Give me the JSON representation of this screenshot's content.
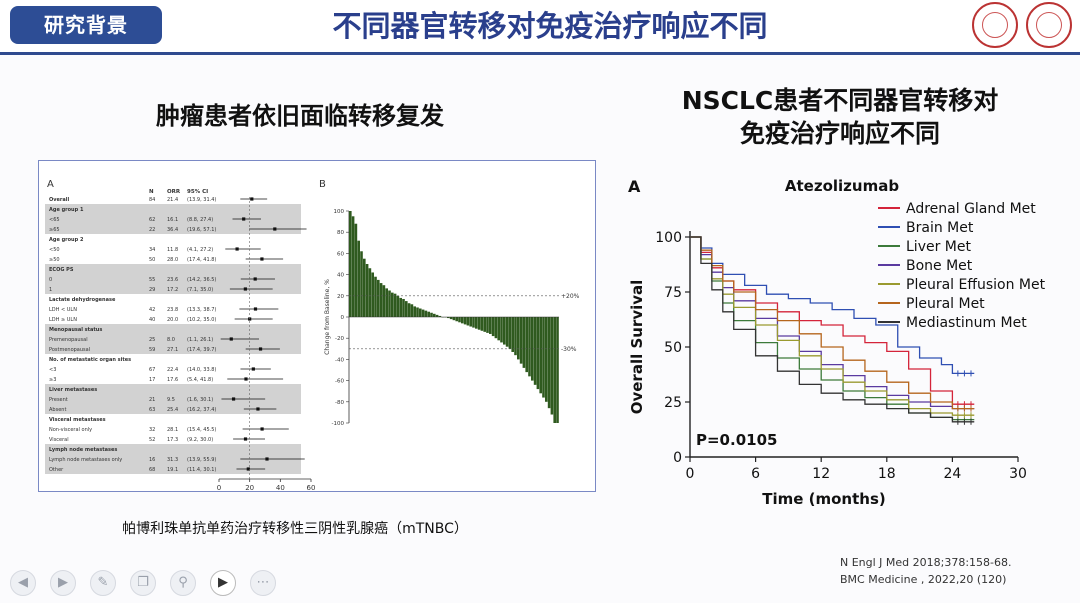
{
  "header": {
    "tab_label": "研究背景",
    "slide_title": "不同器官转移对免疫治疗响应不同"
  },
  "left_panel": {
    "subtitle": "肿瘤患者依旧面临转移复发",
    "caption": "帕博利珠单抗单药治疗转移性三阴性乳腺癌（mTNBC）",
    "forest": {
      "panel_label": "A",
      "col_headers": [
        "N",
        "ORR",
        "95% CI"
      ],
      "rows": [
        {
          "label": "Overall",
          "n": "84",
          "orr": "21.4",
          "ci": "(13.9, 31.4)",
          "shade": false,
          "header": true
        },
        {
          "label": "Age group 1",
          "n": "",
          "orr": "",
          "ci": "",
          "shade": true,
          "header": true
        },
        {
          "label": "<65",
          "n": "62",
          "orr": "16.1",
          "ci": "(8.8, 27.4)",
          "shade": true,
          "header": false
        },
        {
          "label": "≥65",
          "n": "22",
          "orr": "36.4",
          "ci": "(19.6, 57.1)",
          "shade": true,
          "header": false
        },
        {
          "label": "Age group 2",
          "n": "",
          "orr": "",
          "ci": "",
          "shade": false,
          "header": true
        },
        {
          "label": "<50",
          "n": "34",
          "orr": "11.8",
          "ci": "(4.1, 27.2)",
          "shade": false,
          "header": false
        },
        {
          "label": "≥50",
          "n": "50",
          "orr": "28.0",
          "ci": "(17.4, 41.8)",
          "shade": false,
          "header": false
        },
        {
          "label": "ECOG PS",
          "n": "",
          "orr": "",
          "ci": "",
          "shade": true,
          "header": true
        },
        {
          "label": "0",
          "n": "55",
          "orr": "23.6",
          "ci": "(14.2, 36.5)",
          "shade": true,
          "header": false
        },
        {
          "label": "1",
          "n": "29",
          "orr": "17.2",
          "ci": "(7.1, 35.0)",
          "shade": true,
          "header": false
        },
        {
          "label": "Lactate dehydrogenase",
          "n": "",
          "orr": "",
          "ci": "",
          "shade": false,
          "header": true
        },
        {
          "label": "LDH < ULN",
          "n": "42",
          "orr": "23.8",
          "ci": "(13.3, 38.7)",
          "shade": false,
          "header": false
        },
        {
          "label": "LDH ≥ ULN",
          "n": "40",
          "orr": "20.0",
          "ci": "(10.2, 35.0)",
          "shade": false,
          "header": false
        },
        {
          "label": "Menopausal status",
          "n": "",
          "orr": "",
          "ci": "",
          "shade": true,
          "header": true
        },
        {
          "label": "Premenopausal",
          "n": "25",
          "orr": "8.0",
          "ci": "(1.1, 26.1)",
          "shade": true,
          "header": false
        },
        {
          "label": "Postmenopausal",
          "n": "59",
          "orr": "27.1",
          "ci": "(17.4, 39.7)",
          "shade": true,
          "header": false
        },
        {
          "label": "No. of metastatic organ sites",
          "n": "",
          "orr": "",
          "ci": "",
          "shade": false,
          "header": true
        },
        {
          "label": "<3",
          "n": "67",
          "orr": "22.4",
          "ci": "(14.0, 33.8)",
          "shade": false,
          "header": false
        },
        {
          "label": "≥3",
          "n": "17",
          "orr": "17.6",
          "ci": "(5.4, 41.8)",
          "shade": false,
          "header": false
        },
        {
          "label": "Liver metastases",
          "n": "",
          "orr": "",
          "ci": "",
          "shade": true,
          "header": true
        },
        {
          "label": "Present",
          "n": "21",
          "orr": "9.5",
          "ci": "(1.6, 30.1)",
          "shade": true,
          "header": false
        },
        {
          "label": "Absent",
          "n": "63",
          "orr": "25.4",
          "ci": "(16.2, 37.4)",
          "shade": true,
          "header": false
        },
        {
          "label": "Visceral metastases",
          "n": "",
          "orr": "",
          "ci": "",
          "shade": false,
          "header": true
        },
        {
          "label": "Non-visceral only",
          "n": "32",
          "orr": "28.1",
          "ci": "(15.4, 45.5)",
          "shade": false,
          "header": false
        },
        {
          "label": "Visceral",
          "n": "52",
          "orr": "17.3",
          "ci": "(9.2, 30.0)",
          "shade": false,
          "header": false
        },
        {
          "label": "Lymph node metastases",
          "n": "",
          "orr": "",
          "ci": "",
          "shade": true,
          "header": true
        },
        {
          "label": "Lymph node metastases only",
          "n": "16",
          "orr": "31.3",
          "ci": "(13.9, 55.9)",
          "shade": true,
          "header": false
        },
        {
          "label": "Other",
          "n": "68",
          "orr": "19.1",
          "ci": "(11.4, 30.1)",
          "shade": true,
          "header": false
        }
      ],
      "x_ticks": [
        "0",
        "20",
        "40",
        "60"
      ],
      "x_label": "ORR % (95% CI)"
    },
    "waterfall": {
      "panel_label": "B",
      "y_label": "Change from Baseline, %",
      "y_ticks": [
        "100",
        "80",
        "60",
        "40",
        "20",
        "0",
        "-20",
        "-40",
        "-60",
        "-80",
        "-100"
      ],
      "ref_upper": "+20%",
      "ref_lower": "-30%",
      "values": [
        100,
        95,
        88,
        72,
        62,
        55,
        50,
        46,
        42,
        38,
        35,
        32,
        30,
        27,
        25,
        23,
        22,
        20,
        18,
        17,
        15,
        13,
        12,
        10,
        9,
        8,
        7,
        6,
        5,
        4,
        3,
        2,
        1,
        0,
        0,
        -1,
        -2,
        -3,
        -4,
        -5,
        -6,
        -7,
        -8,
        -9,
        -10,
        -11,
        -12,
        -13,
        -14,
        -15,
        -16,
        -18,
        -20,
        -22,
        -24,
        -26,
        -28,
        -30,
        -33,
        -36,
        -40,
        -44,
        -48,
        -52,
        -56,
        -60,
        -64,
        -68,
        -72,
        -76,
        -80,
        -86,
        -92,
        -100,
        -100
      ]
    }
  },
  "right_panel": {
    "subtitle_line1": "NSCLC患者不同器官转移对",
    "subtitle_line2": "免疫治疗响应不同",
    "chart_data": {
      "type": "line",
      "panel_label": "A",
      "title": "Atezolizumab",
      "xlabel": "Time (months)",
      "ylabel": "Overall Survival",
      "xlim": [
        0,
        30
      ],
      "ylim": [
        0,
        100
      ],
      "x_ticks": [
        0,
        6,
        12,
        18,
        24,
        30
      ],
      "y_ticks": [
        0,
        25,
        50,
        75,
        100
      ],
      "annotation": "P=0.0105",
      "legend_position": "top-right",
      "series": [
        {
          "name": "Adrenal Gland Met",
          "color": "#d4243a",
          "x": [
            0,
            1,
            2,
            3,
            4,
            6,
            8,
            10,
            12,
            14,
            16,
            18,
            20,
            22,
            24,
            26
          ],
          "y": [
            100,
            93,
            86,
            80,
            76,
            70,
            66,
            62,
            60,
            55,
            52,
            48,
            40,
            30,
            24,
            24
          ]
        },
        {
          "name": "Brain Met",
          "color": "#2f4fb3",
          "x": [
            0,
            1,
            2,
            3,
            5,
            7,
            9,
            11,
            13,
            15,
            17,
            19,
            21,
            23,
            24,
            26
          ],
          "y": [
            100,
            95,
            88,
            83,
            78,
            74,
            72,
            70,
            67,
            63,
            60,
            50,
            45,
            42,
            38,
            38
          ]
        },
        {
          "name": "Liver Met",
          "color": "#3c7a3a",
          "x": [
            0,
            1,
            2,
            3,
            4,
            6,
            8,
            10,
            12,
            14,
            16,
            18,
            20,
            22,
            24,
            26
          ],
          "y": [
            100,
            90,
            80,
            70,
            62,
            52,
            45,
            40,
            35,
            30,
            27,
            24,
            20,
            18,
            17,
            17
          ]
        },
        {
          "name": "Bone Met",
          "color": "#5a3aa0",
          "x": [
            0,
            1,
            2,
            3,
            4,
            6,
            8,
            10,
            12,
            14,
            16,
            18,
            20,
            22,
            24,
            26
          ],
          "y": [
            100,
            92,
            84,
            77,
            71,
            63,
            55,
            48,
            42,
            37,
            32,
            28,
            25,
            23,
            22,
            22
          ]
        },
        {
          "name": "Pleural Effusion Met",
          "color": "#9a9a30",
          "x": [
            0,
            1,
            2,
            3,
            4,
            6,
            8,
            10,
            12,
            14,
            16,
            18,
            20,
            22,
            24,
            26
          ],
          "y": [
            100,
            90,
            81,
            74,
            68,
            60,
            53,
            46,
            40,
            34,
            30,
            26,
            22,
            20,
            19,
            19
          ]
        },
        {
          "name": "Pleural Met",
          "color": "#b5651d",
          "x": [
            0,
            1,
            2,
            3,
            4,
            6,
            8,
            10,
            12,
            14,
            16,
            18,
            20,
            22,
            24,
            26
          ],
          "y": [
            100,
            94,
            87,
            80,
            75,
            67,
            62,
            56,
            50,
            44,
            39,
            34,
            29,
            25,
            22,
            22
          ]
        },
        {
          "name": "Mediastinum Met",
          "color": "#333333",
          "x": [
            0,
            1,
            2,
            3,
            4,
            6,
            8,
            10,
            12,
            14,
            16,
            18,
            20,
            22,
            24,
            26
          ],
          "y": [
            100,
            88,
            76,
            66,
            58,
            46,
            39,
            33,
            29,
            26,
            24,
            22,
            20,
            18,
            16,
            16
          ]
        }
      ]
    }
  },
  "references": {
    "line1": "N Engl J Med 2018;378:158-68.",
    "line2": "BMC Medicine , 2022,20 (120)"
  },
  "toolbar": {
    "buttons": [
      {
        "name": "prev-icon",
        "glyph": "◀"
      },
      {
        "name": "next-icon",
        "glyph": "▶"
      },
      {
        "name": "pen-icon",
        "glyph": "✎"
      },
      {
        "name": "copy-icon",
        "glyph": "❐"
      },
      {
        "name": "zoom-icon",
        "glyph": "⚲"
      },
      {
        "name": "video-icon",
        "glyph": "▶"
      },
      {
        "name": "more-icon",
        "glyph": "⋯"
      }
    ]
  }
}
